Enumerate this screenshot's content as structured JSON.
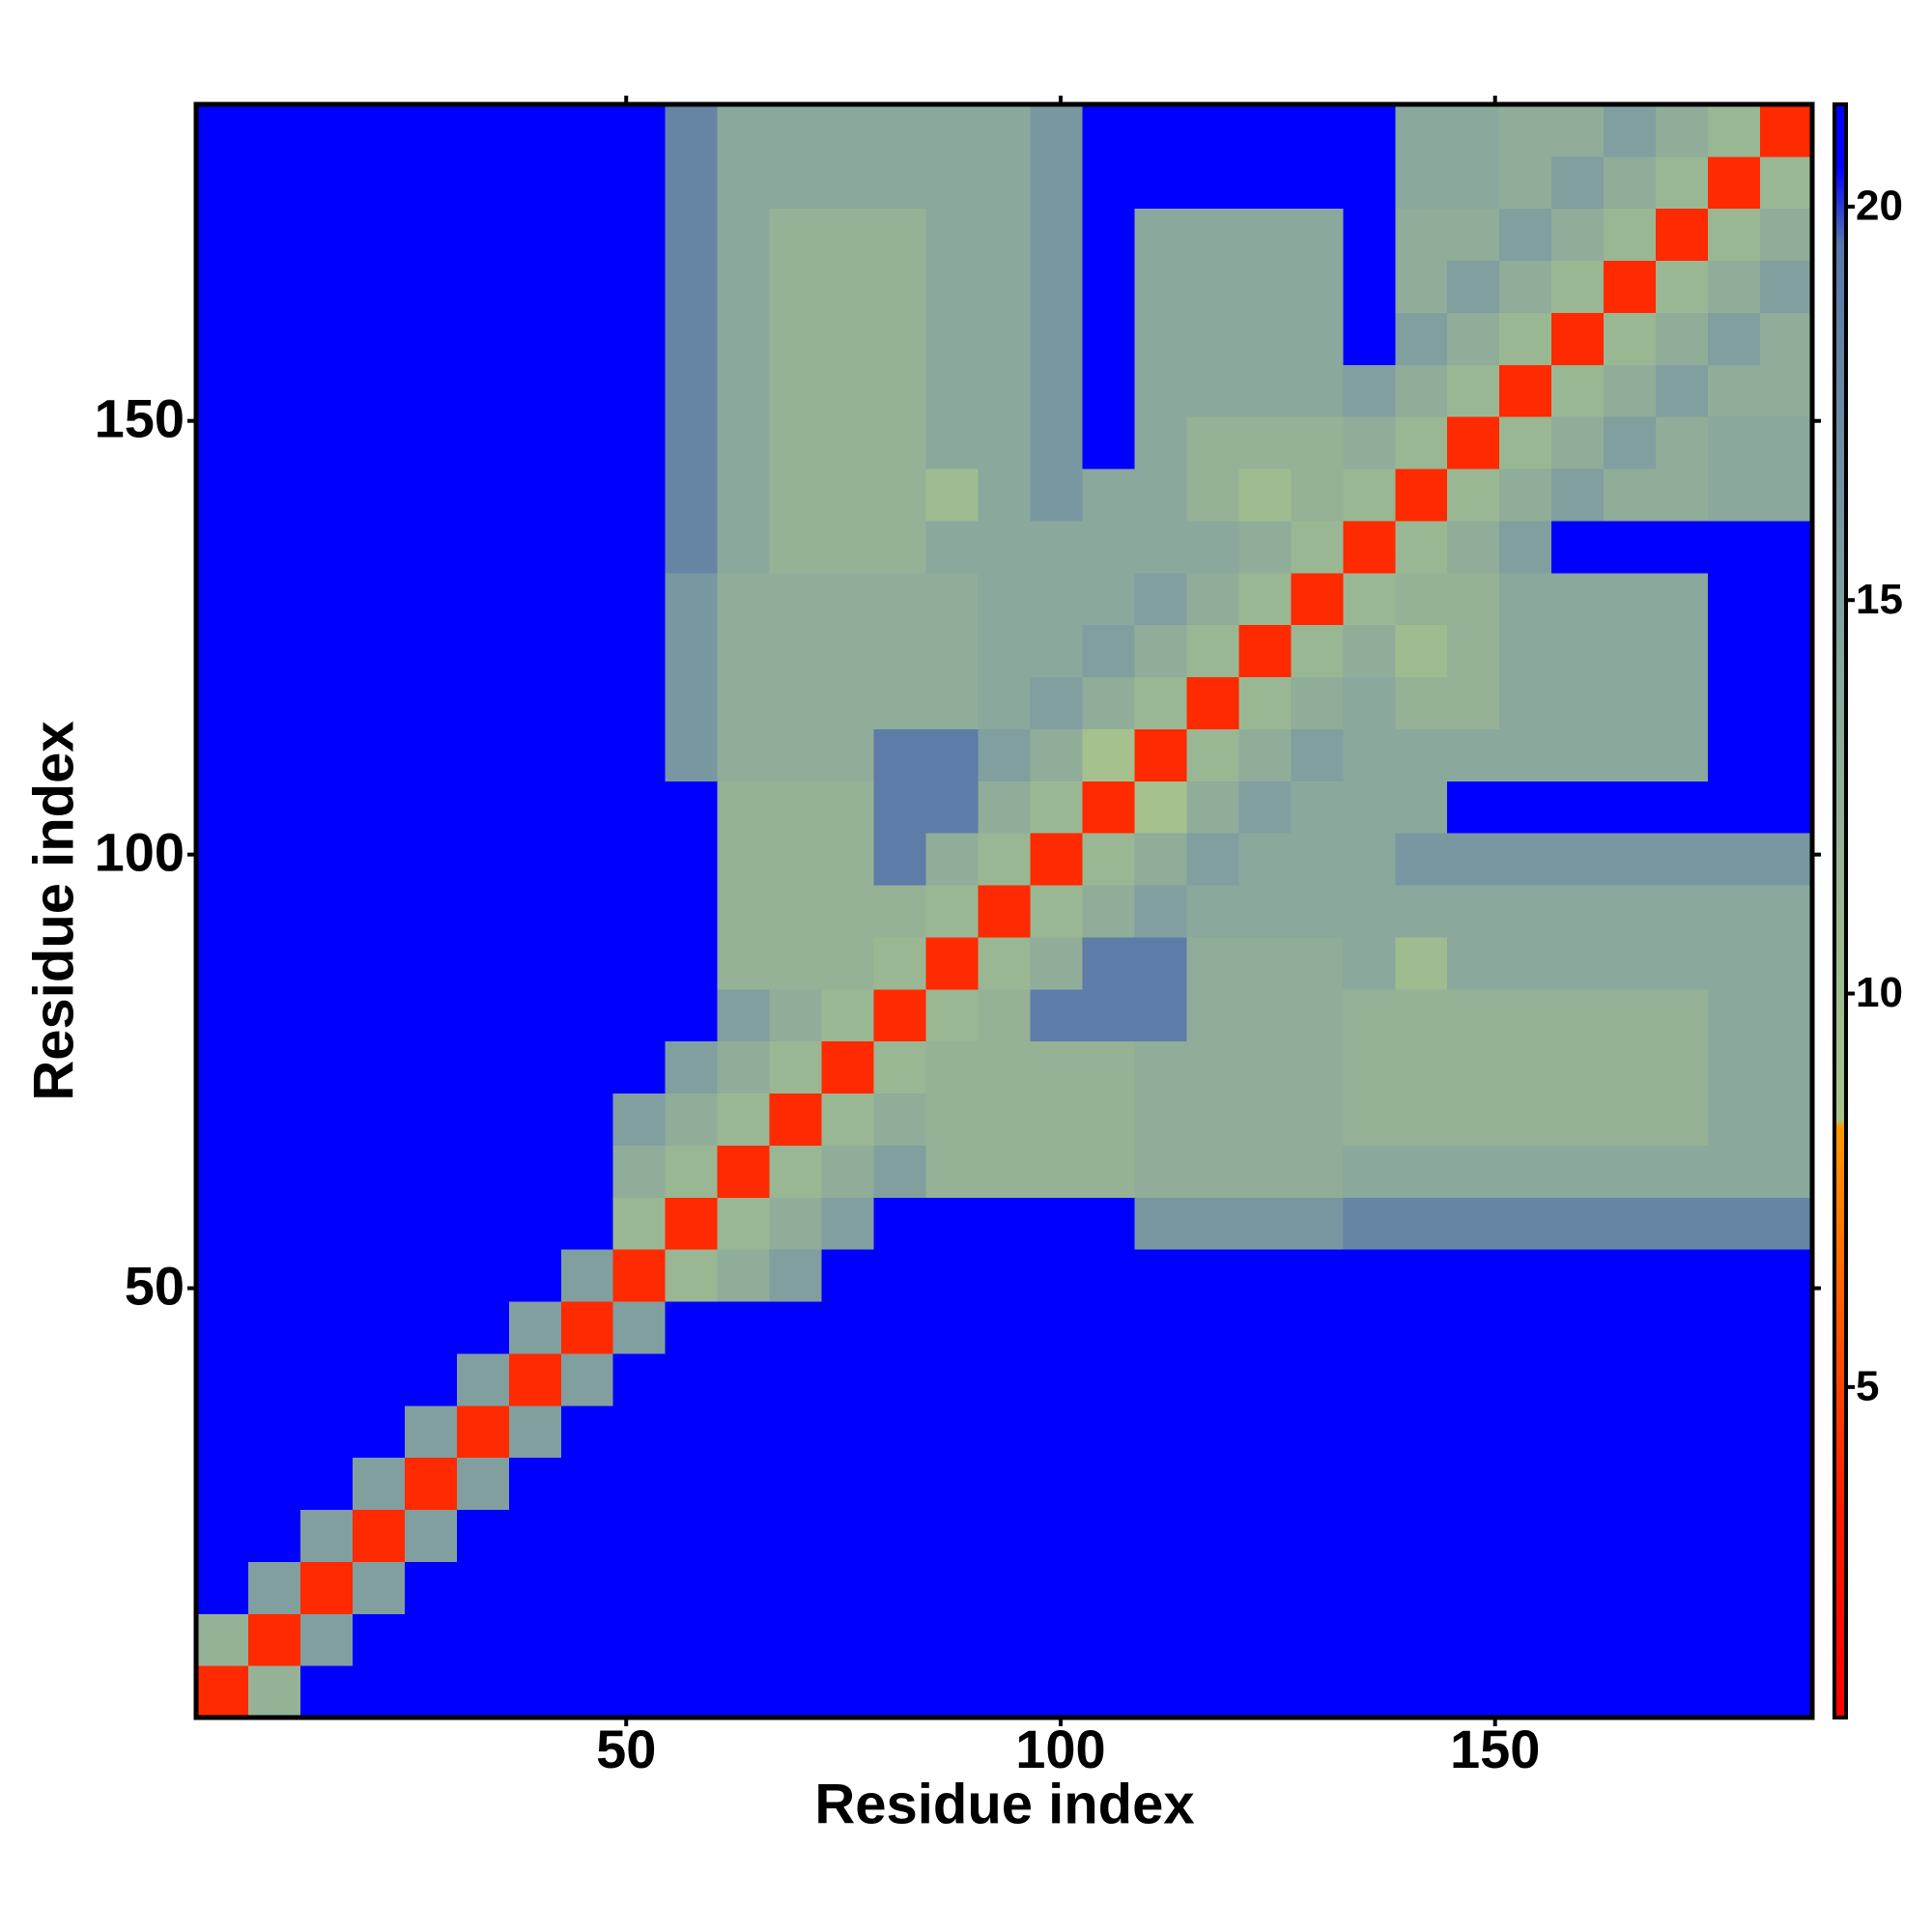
{
  "chart_data": {
    "type": "heatmap",
    "x_label": "Residue index",
    "y_label": "Residue index",
    "xlim": [
      0.5,
      186.5
    ],
    "ylim": [
      0.5,
      186.5
    ],
    "xticks": [
      50,
      100,
      150
    ],
    "yticks": [
      50,
      100,
      150
    ],
    "x_bins": [
      0.5,
      6.5,
      12.5,
      18.5,
      24.5,
      30.5,
      36.5,
      42.5,
      48.5,
      54.5,
      60.5,
      66.5,
      72.5,
      78.5,
      84.5,
      90.5,
      96.5,
      102.5,
      108.5,
      114.5,
      120.5,
      126.5,
      132.5,
      138.5,
      144.5,
      150.5,
      156.5,
      162.5,
      168.5,
      174.5,
      180.5,
      186.5
    ],
    "y_bins": [
      0.5,
      6.5,
      12.5,
      18.5,
      24.5,
      30.5,
      36.5,
      42.5,
      48.5,
      54.5,
      60.5,
      66.5,
      72.5,
      78.5,
      84.5,
      90.5,
      96.5,
      102.5,
      108.5,
      114.5,
      120.5,
      126.5,
      132.5,
      138.5,
      144.5,
      150.5,
      156.5,
      162.5,
      168.5,
      174.5,
      180.5,
      186.5
    ],
    "values": [
      [
        4,
        12,
        21,
        21,
        21,
        21,
        21,
        21,
        21,
        21,
        21,
        21,
        21,
        21,
        21,
        21,
        21,
        21,
        21,
        21,
        21,
        21,
        21,
        21,
        21,
        21,
        21,
        21,
        21,
        21,
        21
      ],
      [
        12,
        4,
        15,
        21,
        21,
        21,
        21,
        21,
        21,
        21,
        21,
        21,
        21,
        21,
        21,
        21,
        21,
        21,
        21,
        21,
        21,
        21,
        21,
        21,
        21,
        21,
        21,
        21,
        21,
        21,
        21
      ],
      [
        21,
        15,
        4,
        15,
        21,
        21,
        21,
        21,
        21,
        21,
        21,
        21,
        21,
        21,
        21,
        21,
        21,
        21,
        21,
        21,
        21,
        21,
        21,
        21,
        21,
        21,
        21,
        21,
        21,
        21,
        21
      ],
      [
        21,
        21,
        15,
        4,
        15,
        21,
        21,
        21,
        21,
        21,
        21,
        21,
        21,
        21,
        21,
        21,
        21,
        21,
        21,
        21,
        21,
        21,
        21,
        21,
        21,
        21,
        21,
        21,
        21,
        21,
        21
      ],
      [
        21,
        21,
        21,
        15,
        4,
        15,
        21,
        21,
        21,
        21,
        21,
        21,
        21,
        21,
        21,
        21,
        21,
        21,
        21,
        21,
        21,
        21,
        21,
        21,
        21,
        21,
        21,
        21,
        21,
        21,
        21
      ],
      [
        21,
        21,
        21,
        21,
        15,
        4,
        15,
        21,
        21,
        21,
        21,
        21,
        21,
        21,
        21,
        21,
        21,
        21,
        21,
        21,
        21,
        21,
        21,
        21,
        21,
        21,
        21,
        21,
        21,
        21,
        21
      ],
      [
        21,
        21,
        21,
        21,
        21,
        15,
        4,
        15,
        21,
        21,
        21,
        21,
        21,
        21,
        21,
        21,
        21,
        21,
        21,
        21,
        21,
        21,
        21,
        21,
        21,
        21,
        21,
        21,
        21,
        21,
        21
      ],
      [
        21,
        21,
        21,
        21,
        21,
        21,
        15,
        4,
        15,
        21,
        21,
        21,
        21,
        21,
        21,
        21,
        21,
        21,
        21,
        21,
        21,
        21,
        21,
        21,
        21,
        21,
        21,
        21,
        21,
        21,
        21
      ],
      [
        21,
        21,
        21,
        21,
        21,
        21,
        21,
        15,
        4,
        11,
        13,
        15,
        21,
        21,
        21,
        21,
        21,
        21,
        21,
        21,
        21,
        21,
        21,
        21,
        21,
        21,
        21,
        21,
        21,
        21,
        21
      ],
      [
        21,
        21,
        21,
        21,
        21,
        21,
        21,
        21,
        11,
        4,
        11,
        13,
        15,
        21,
        21,
        21,
        21,
        21,
        16,
        16,
        16,
        16,
        18,
        18,
        18,
        18,
        18,
        18,
        18,
        18,
        18
      ],
      [
        21,
        21,
        21,
        21,
        21,
        21,
        21,
        21,
        13,
        11,
        4,
        11,
        13,
        15,
        12,
        12,
        12,
        12,
        13,
        13,
        13,
        13,
        14,
        14,
        14,
        14,
        14,
        14,
        14,
        14,
        14
      ],
      [
        21,
        21,
        21,
        21,
        21,
        21,
        21,
        21,
        15,
        13,
        11,
        4,
        11,
        13,
        12,
        12,
        12,
        12,
        13,
        13,
        13,
        13,
        12,
        12,
        12,
        12,
        12,
        12,
        12,
        14,
        14
      ],
      [
        21,
        21,
        21,
        21,
        21,
        21,
        21,
        21,
        21,
        15,
        13,
        11,
        4,
        11,
        12,
        12,
        12,
        12,
        13,
        13,
        13,
        13,
        12,
        12,
        12,
        12,
        12,
        12,
        12,
        14,
        14
      ],
      [
        21,
        21,
        21,
        21,
        21,
        21,
        21,
        21,
        21,
        21,
        15,
        13,
        11,
        4,
        11,
        12,
        19,
        19,
        19,
        13,
        13,
        13,
        12,
        12,
        12,
        12,
        12,
        12,
        12,
        14,
        14
      ],
      [
        21,
        21,
        21,
        21,
        21,
        21,
        21,
        21,
        21,
        21,
        12,
        12,
        12,
        11,
        4,
        11,
        13,
        19,
        19,
        13,
        13,
        13,
        14,
        10,
        14,
        14,
        14,
        14,
        14,
        14,
        14
      ],
      [
        21,
        21,
        21,
        21,
        21,
        21,
        21,
        21,
        21,
        21,
        12,
        12,
        12,
        12,
        11,
        4,
        11,
        13,
        15,
        14,
        14,
        14,
        14,
        14,
        14,
        14,
        14,
        14,
        14,
        14,
        14
      ],
      [
        21,
        21,
        21,
        21,
        21,
        21,
        21,
        21,
        21,
        21,
        12,
        12,
        12,
        19,
        13,
        11,
        4,
        11,
        13,
        15,
        14,
        14,
        14,
        16,
        16,
        16,
        16,
        16,
        16,
        16,
        16
      ],
      [
        21,
        21,
        21,
        21,
        21,
        21,
        21,
        21,
        21,
        21,
        12,
        12,
        12,
        19,
        19,
        13,
        11,
        4,
        9,
        13,
        15,
        14,
        14,
        14,
        21,
        21,
        21,
        21,
        21,
        21,
        21
      ],
      [
        21,
        21,
        21,
        21,
        21,
        21,
        21,
        21,
        21,
        16,
        13,
        13,
        13,
        19,
        19,
        15,
        13,
        9,
        4,
        11,
        13,
        15,
        14,
        14,
        14,
        14,
        14,
        14,
        14,
        21,
        21
      ],
      [
        21,
        21,
        21,
        21,
        21,
        21,
        21,
        21,
        21,
        16,
        13,
        13,
        13,
        13,
        13,
        14,
        15,
        13,
        11,
        4,
        11,
        13,
        14,
        12,
        12,
        14,
        14,
        14,
        14,
        21,
        21
      ],
      [
        21,
        21,
        21,
        21,
        21,
        21,
        21,
        21,
        21,
        16,
        13,
        13,
        13,
        13,
        13,
        14,
        14,
        15,
        13,
        11,
        4,
        11,
        13,
        10,
        12,
        14,
        14,
        14,
        14,
        21,
        21
      ],
      [
        21,
        21,
        21,
        21,
        21,
        21,
        21,
        21,
        21,
        16,
        13,
        13,
        13,
        13,
        13,
        14,
        14,
        14,
        15,
        13,
        11,
        4,
        11,
        12,
        12,
        14,
        14,
        14,
        14,
        21,
        21
      ],
      [
        21,
        21,
        21,
        21,
        21,
        21,
        21,
        21,
        21,
        18,
        14,
        12,
        12,
        12,
        14,
        14,
        14,
        14,
        14,
        14,
        13,
        11,
        4,
        11,
        13,
        15,
        21,
        21,
        21,
        21,
        21
      ],
      [
        21,
        21,
        21,
        21,
        21,
        21,
        21,
        21,
        21,
        18,
        14,
        12,
        12,
        12,
        10,
        14,
        16,
        14,
        14,
        12,
        10,
        12,
        11,
        4,
        11,
        13,
        15,
        13,
        13,
        14,
        14
      ],
      [
        21,
        21,
        21,
        21,
        21,
        21,
        21,
        21,
        21,
        18,
        14,
        12,
        12,
        12,
        14,
        14,
        16,
        21,
        14,
        12,
        12,
        12,
        13,
        11,
        4,
        11,
        13,
        15,
        13,
        14,
        14
      ],
      [
        21,
        21,
        21,
        21,
        21,
        21,
        21,
        21,
        21,
        18,
        14,
        12,
        12,
        12,
        14,
        14,
        16,
        21,
        14,
        14,
        14,
        14,
        15,
        13,
        11,
        4,
        11,
        13,
        15,
        13,
        13
      ],
      [
        21,
        21,
        21,
        21,
        21,
        21,
        21,
        21,
        21,
        18,
        14,
        12,
        12,
        12,
        14,
        14,
        16,
        21,
        14,
        14,
        14,
        14,
        21,
        15,
        13,
        11,
        4,
        11,
        13,
        15,
        13
      ],
      [
        21,
        21,
        21,
        21,
        21,
        21,
        21,
        21,
        21,
        18,
        14,
        12,
        12,
        12,
        14,
        14,
        16,
        21,
        14,
        14,
        14,
        14,
        21,
        13,
        15,
        13,
        11,
        4,
        11,
        13,
        15
      ],
      [
        21,
        21,
        21,
        21,
        21,
        21,
        21,
        21,
        21,
        18,
        14,
        12,
        12,
        12,
        14,
        14,
        16,
        21,
        14,
        14,
        14,
        14,
        21,
        13,
        13,
        15,
        13,
        11,
        4,
        11,
        13
      ],
      [
        21,
        21,
        21,
        21,
        21,
        21,
        21,
        21,
        21,
        18,
        14,
        14,
        14,
        14,
        14,
        14,
        16,
        21,
        21,
        21,
        21,
        21,
        21,
        14,
        14,
        13,
        15,
        13,
        11,
        4,
        11
      ],
      [
        21,
        21,
        21,
        21,
        21,
        21,
        21,
        21,
        21,
        18,
        14,
        14,
        14,
        14,
        14,
        14,
        16,
        21,
        21,
        21,
        21,
        21,
        21,
        14,
        14,
        13,
        13,
        15,
        13,
        11,
        4
      ]
    ],
    "colorbar": {
      "lim": [
        0.8,
        21.3
      ],
      "ticks": [
        5,
        10,
        15,
        20
      ]
    },
    "colorscale": [
      [
        0.8,
        "#ff0000"
      ],
      [
        3.4,
        "#ff1a00"
      ],
      [
        8.3,
        "#ff9900"
      ],
      [
        8.4,
        "#a8c48c"
      ],
      [
        14,
        "#8aa89c"
      ],
      [
        19.5,
        "#5878a8"
      ],
      [
        20.5,
        "#0000ff"
      ],
      [
        21.3,
        "#0000ff"
      ]
    ]
  }
}
